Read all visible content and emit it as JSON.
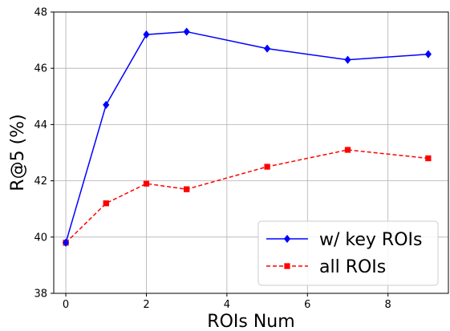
{
  "chart_data": {
    "type": "line",
    "xlabel": "ROIs Num",
    "ylabel": "R@5 (%)",
    "xlim": [
      -0.3,
      9.5
    ],
    "ylim": [
      38,
      48
    ],
    "x_ticks": [
      0,
      2,
      4,
      6,
      8
    ],
    "y_ticks": [
      38,
      40,
      42,
      44,
      46,
      48
    ],
    "grid": true,
    "legend_position": "lower-right",
    "series": [
      {
        "name": "w/ key ROIs",
        "color": "#0000ff",
        "marker": "diamond",
        "linestyle": "solid",
        "x": [
          0,
          1,
          2,
          3,
          5,
          7,
          9
        ],
        "y": [
          39.8,
          44.7,
          47.2,
          47.3,
          46.7,
          46.3,
          46.5
        ]
      },
      {
        "name": "all ROIs",
        "color": "#ff0000",
        "marker": "square",
        "linestyle": "dashed",
        "x": [
          0,
          1,
          2,
          3,
          5,
          7,
          9
        ],
        "y": [
          39.8,
          41.2,
          41.9,
          41.7,
          42.5,
          43.1,
          42.8
        ]
      }
    ]
  }
}
